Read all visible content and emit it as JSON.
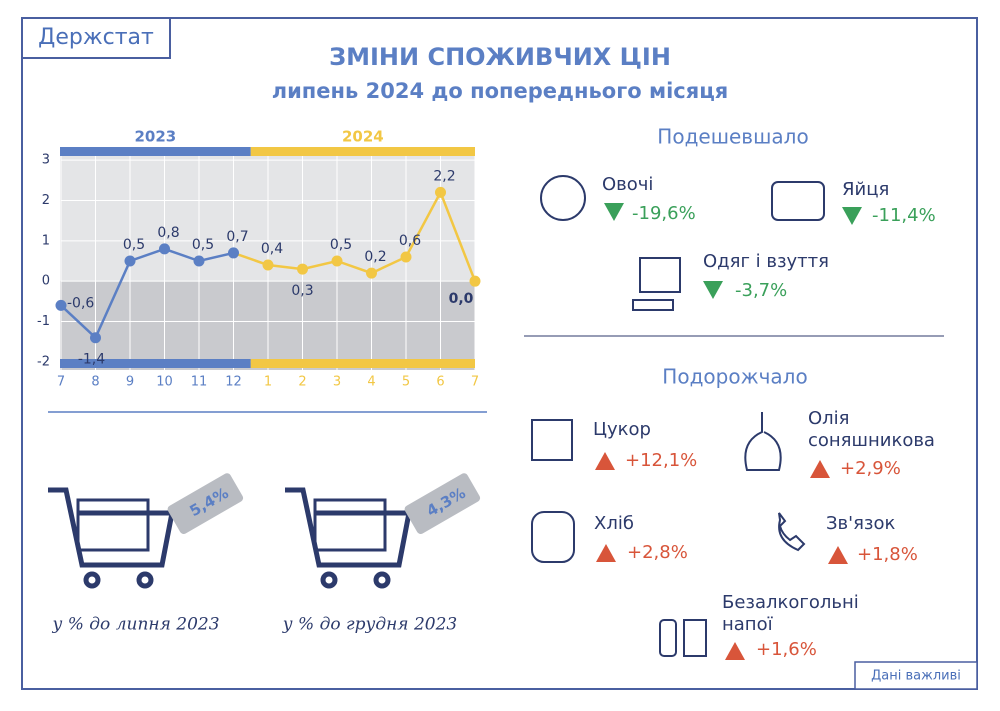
{
  "header": {
    "brand": "Держстат",
    "title": "ЗМІНИ СПОЖИВЧИХ ЦІН",
    "subtitle": "липень 2024 до попереднього місяця",
    "footer": "Дані важливі"
  },
  "chart_data": {
    "type": "line",
    "categories": [
      "7",
      "8",
      "9",
      "10",
      "11",
      "12",
      "1",
      "2",
      "3",
      "4",
      "5",
      "6",
      "7"
    ],
    "series": [
      {
        "name": "2023",
        "color": "#5b7fc4",
        "values": [
          -0.6,
          -1.4,
          0.5,
          0.8,
          0.5,
          0.7,
          null,
          null,
          null,
          null,
          null,
          null,
          null
        ],
        "value_labels": [
          "-0,6",
          "-1,4",
          "0,5",
          "0,8",
          "0,5",
          "0,7",
          null,
          null,
          null,
          null,
          null,
          null,
          null
        ]
      },
      {
        "name": "2024",
        "color": "#f2c744",
        "values": [
          null,
          null,
          null,
          null,
          null,
          null,
          0.4,
          0.3,
          0.5,
          0.2,
          0.6,
          2.2,
          0.0
        ],
        "value_labels": [
          null,
          null,
          null,
          null,
          null,
          null,
          "0,4",
          "0,3",
          "0,5",
          "0,2",
          "0,6",
          "2,2",
          "0,0"
        ]
      }
    ],
    "ylim": [
      -2.2,
      3.2
    ],
    "yticks": [
      -2,
      -1,
      0,
      1,
      2,
      3
    ],
    "grid": true
  },
  "cheaper": {
    "title": "Подешевшало",
    "items": [
      {
        "name": "Овочі",
        "change": "-19,6%"
      },
      {
        "name": "Яйця",
        "change": "-11,4%"
      },
      {
        "name": "Одяг і взуття",
        "change": "-3,7%"
      }
    ]
  },
  "dearer": {
    "title": "Подорожчало",
    "items": [
      {
        "name": "Цукор",
        "change": "+12,1%"
      },
      {
        "name": "Олія соняшникова",
        "change": "+2,9%"
      },
      {
        "name": "Хліб",
        "change": "+2,8%"
      },
      {
        "name": "Зв'язок",
        "change": "+1,8%"
      },
      {
        "name": "Безалкогольні напої",
        "change": "+1,6%"
      }
    ]
  },
  "carts": [
    {
      "value": "5,4%",
      "caption": "у % до липня 2023"
    },
    {
      "value": "4,3%",
      "caption": "у % до грудня 2023"
    }
  ]
}
